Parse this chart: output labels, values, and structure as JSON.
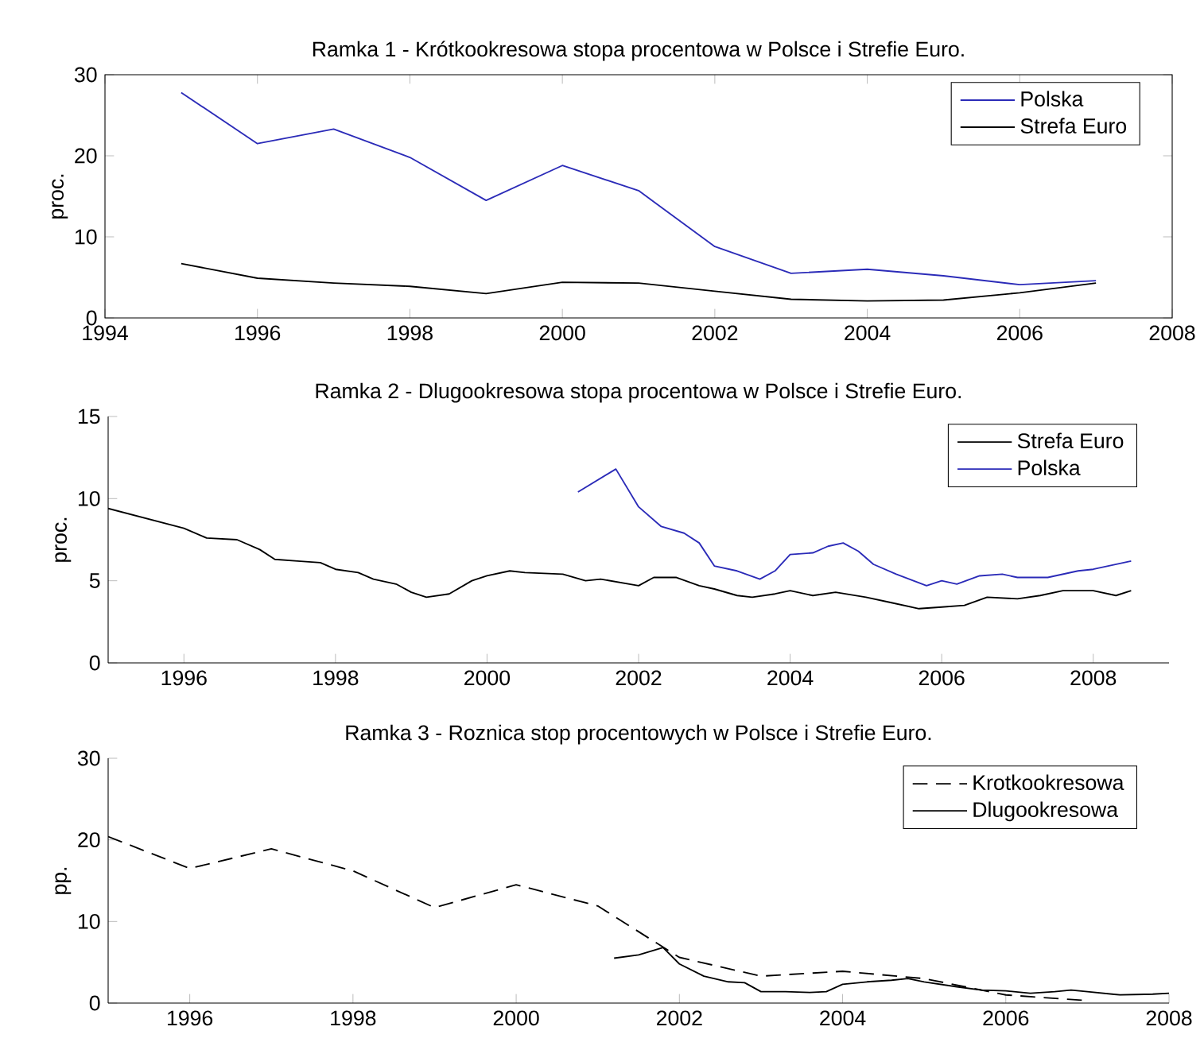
{
  "chart_data": [
    {
      "type": "line",
      "title": "Ramka 1 - Krótkookresowa stopa procentowa w Polsce i Strefie Euro.",
      "ylabel": "proc.",
      "xlim": [
        1994,
        2008
      ],
      "xticks": [
        1994,
        1996,
        1998,
        2000,
        2002,
        2004,
        2006,
        2008
      ],
      "ylim": [
        0,
        30
      ],
      "yticks": [
        0,
        10,
        20,
        30
      ],
      "legend": "top right",
      "x": [
        1995,
        1996,
        1997,
        1998,
        1999,
        2000,
        2001,
        2002,
        2003,
        2004,
        2005,
        2006,
        2007
      ],
      "series": [
        {
          "name": "Polska",
          "color": "#2b2bb8",
          "values": [
            27.8,
            21.5,
            23.3,
            19.8,
            14.5,
            18.8,
            15.7,
            8.8,
            5.5,
            6.0,
            5.2,
            4.1,
            4.6
          ]
        },
        {
          "name": "Strefa Euro",
          "color": "#000000",
          "values": [
            6.7,
            4.9,
            4.3,
            3.9,
            3.0,
            4.4,
            4.3,
            3.3,
            2.3,
            2.1,
            2.2,
            3.1,
            4.3
          ]
        }
      ]
    },
    {
      "type": "line",
      "title": "Ramka 2 - Dlugookresowa stopa procentowa w Polsce i Strefie Euro.",
      "ylabel": "proc.",
      "xlim": [
        1995,
        2009
      ],
      "xticks": [
        1996,
        1998,
        2000,
        2002,
        2004,
        2006,
        2008
      ],
      "ylim": [
        0,
        15
      ],
      "yticks": [
        0,
        5,
        10,
        15
      ],
      "legend": "top right",
      "series": [
        {
          "name": "Strefa Euro",
          "color": "#000000",
          "x": [
            1995.0,
            1995.5,
            1996.0,
            1996.3,
            1996.7,
            1997.0,
            1997.2,
            1997.5,
            1997.8,
            1998.0,
            1998.3,
            1998.5,
            1998.8,
            1999.0,
            1999.2,
            1999.5,
            1999.8,
            2000.0,
            2000.3,
            2000.5,
            2001.0,
            2001.3,
            2001.5,
            2002.0,
            2002.2,
            2002.5,
            2002.8,
            2003.0,
            2003.3,
            2003.5,
            2003.8,
            2004.0,
            2004.3,
            2004.6,
            2005.0,
            2005.3,
            2005.7,
            2006.0,
            2006.3,
            2006.6,
            2007.0,
            2007.3,
            2007.6,
            2008.0,
            2008.3,
            2008.5
          ],
          "values": [
            9.4,
            8.8,
            8.2,
            7.6,
            7.5,
            6.9,
            6.3,
            6.2,
            6.1,
            5.7,
            5.5,
            5.1,
            4.8,
            4.3,
            4.0,
            4.2,
            5.0,
            5.3,
            5.6,
            5.5,
            5.4,
            5.0,
            5.1,
            4.7,
            5.2,
            5.2,
            4.7,
            4.5,
            4.1,
            4.0,
            4.2,
            4.4,
            4.1,
            4.3,
            4.0,
            3.7,
            3.3,
            3.4,
            3.5,
            4.0,
            3.9,
            4.1,
            4.4,
            4.4,
            4.1,
            4.4
          ]
        },
        {
          "name": "Polska",
          "color": "#2b2bb8",
          "x": [
            2001.2,
            2001.7,
            2002.0,
            2002.3,
            2002.6,
            2002.8,
            2003.0,
            2003.3,
            2003.6,
            2003.8,
            2004.0,
            2004.3,
            2004.5,
            2004.7,
            2004.9,
            2005.1,
            2005.4,
            2005.8,
            2006.0,
            2006.2,
            2006.5,
            2006.8,
            2007.0,
            2007.4,
            2007.8,
            2008.0,
            2008.5
          ],
          "values": [
            10.4,
            11.8,
            9.5,
            8.3,
            7.9,
            7.3,
            5.9,
            5.6,
            5.1,
            5.6,
            6.6,
            6.7,
            7.1,
            7.3,
            6.8,
            6.0,
            5.4,
            4.7,
            5.0,
            4.8,
            5.3,
            5.4,
            5.2,
            5.2,
            5.6,
            5.7,
            6.2
          ]
        }
      ]
    },
    {
      "type": "line",
      "title": "Ramka 3 - Roznica stop procentowych w Polsce i Strefie Euro.",
      "ylabel": "pp.",
      "xlim": [
        1995,
        2008
      ],
      "xticks": [
        1996,
        1998,
        2000,
        2002,
        2004,
        2006,
        2008
      ],
      "ylim": [
        0,
        30
      ],
      "yticks": [
        0,
        10,
        20,
        30
      ],
      "legend": "top right",
      "series": [
        {
          "name": "Krotkookresowa",
          "color": "#000000",
          "line_style": "dashed",
          "x": [
            1995,
            1996,
            1997,
            1998,
            1999,
            2000,
            2001,
            2002,
            2003,
            2004,
            2005,
            2006,
            2007
          ],
          "values": [
            20.4,
            16.5,
            18.9,
            16.2,
            11.7,
            14.5,
            11.9,
            5.6,
            3.3,
            3.9,
            3.0,
            1.0,
            0.3
          ]
        },
        {
          "name": "Dlugookresowa",
          "color": "#000000",
          "line_style": "solid",
          "x": [
            2001.2,
            2001.5,
            2001.8,
            2002.0,
            2002.3,
            2002.6,
            2002.8,
            2003.0,
            2003.3,
            2003.6,
            2003.8,
            2004.0,
            2004.3,
            2004.6,
            2004.8,
            2005.0,
            2005.4,
            2005.7,
            2006.0,
            2006.3,
            2006.6,
            2006.8,
            2007.0,
            2007.4,
            2007.8,
            2008.0
          ],
          "values": [
            5.5,
            5.9,
            6.8,
            4.8,
            3.3,
            2.6,
            2.5,
            1.4,
            1.4,
            1.3,
            1.4,
            2.3,
            2.6,
            2.8,
            3.0,
            2.6,
            2.0,
            1.6,
            1.5,
            1.2,
            1.4,
            1.6,
            1.4,
            1.0,
            1.1,
            1.2
          ]
        }
      ]
    }
  ]
}
